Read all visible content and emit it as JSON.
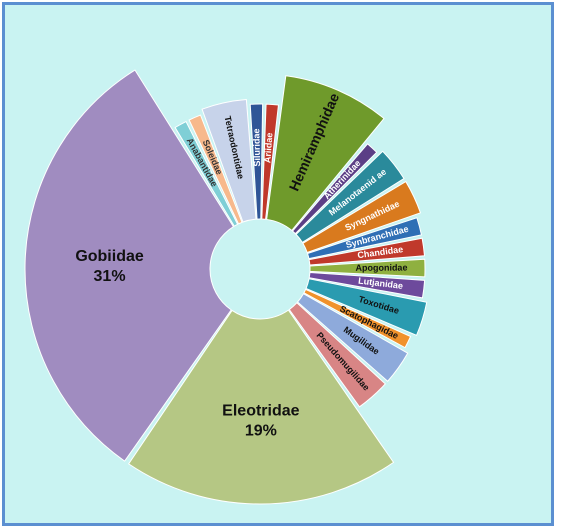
{
  "chart_data": {
    "type": "pie",
    "style": "exploded radial donut",
    "colors_note": "each slice has its own fill color",
    "slices": [
      {
        "label": "Siluridae",
        "value": 1.5,
        "color": "#2f5597",
        "text_color": "#ffffff"
      },
      {
        "label": "Ariidae",
        "value": 1.5,
        "color": "#c0392b",
        "text_color": "#ffffff"
      },
      {
        "label": "Hemiramphidae",
        "value": 9.0,
        "color": "#6f9a2b",
        "text_color": "#111111"
      },
      {
        "label": "Atherinidae",
        "value": 1.5,
        "color": "#5b3f86",
        "text_color": "#ffffff"
      },
      {
        "label": "Melanotaenid ae",
        "value": 3.5,
        "color": "#2a8a9b",
        "text_color": "#ffffff"
      },
      {
        "label": "Syngnathidae",
        "value": 3.5,
        "color": "#d97a1e",
        "text_color": "#ffffff"
      },
      {
        "label": "Synbranchidae",
        "value": 2.0,
        "color": "#2f6fb5",
        "text_color": "#ffffff"
      },
      {
        "label": "Chandidae",
        "value": 2.0,
        "color": "#c0392b",
        "text_color": "#ffffff"
      },
      {
        "label": "Apogonidae",
        "value": 2.0,
        "color": "#8fb040",
        "text_color": "#111111"
      },
      {
        "label": "Lutjanidae",
        "value": 2.0,
        "color": "#6d4a9c",
        "text_color": "#ffffff"
      },
      {
        "label": "Toxotidae",
        "value": 3.5,
        "color": "#2a9bb0",
        "text_color": "#111111"
      },
      {
        "label": "Scatophagidae",
        "value": 1.5,
        "color": "#f0922c",
        "text_color": "#111111"
      },
      {
        "label": "Mugilidae",
        "value": 3.5,
        "color": "#8eaadb",
        "text_color": "#111111"
      },
      {
        "label": "Pseudomugilidae",
        "value": 3.5,
        "color": "#d88585",
        "text_color": "#111111"
      },
      {
        "label": "Eleotridae",
        "value": 19,
        "color": "#b5c784",
        "text_color": "#111111",
        "percent": "19%"
      },
      {
        "label": "Gobiidae",
        "value": 31,
        "color": "#a08cc0",
        "text_color": "#111111",
        "percent": "31%"
      },
      {
        "label": "Anabantidae",
        "value": 1.5,
        "color": "#7fcfd6",
        "text_color": "#333333"
      },
      {
        "label": "Soleidae",
        "value": 1.5,
        "color": "#f7b98c",
        "text_color": "#333333"
      },
      {
        "label": "Tetraodontidae",
        "value": 4.5,
        "color": "#c7d3ea",
        "text_color": "#111111"
      }
    ]
  }
}
